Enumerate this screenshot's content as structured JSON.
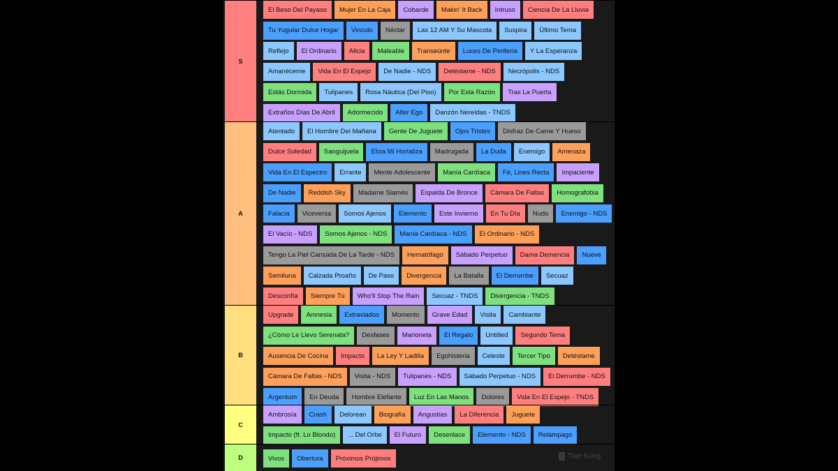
{
  "watermark": "Tier King",
  "tiers": [
    {
      "label": "S",
      "color": "#ff7f7f",
      "rows": [
        [
          [
            "El Beso Del Payaso",
            "#ff7f7f"
          ],
          [
            "Mujer En La Caja",
            "#ffa05a"
          ],
          [
            "Cobarde",
            "#c8a0ff"
          ],
          [
            "Makin' It Back",
            "#ffa05a"
          ],
          [
            "Intruso",
            "#c8a0ff"
          ],
          [
            "Ciencia De La Lluvia",
            "#ff7f7f"
          ]
        ],
        [
          [
            "Tu Yugular Dulce Hogar",
            "#4a9fff"
          ],
          [
            "Vinculo",
            "#4a9fff"
          ],
          [
            "Néctar",
            "#9a9a9a"
          ],
          [
            "Las 12 AM Y Su Mascota",
            "#8cc8ff"
          ],
          [
            "Suspira",
            "#8cc8ff"
          ],
          [
            "Último Tema",
            "#8cc8ff"
          ]
        ],
        [
          [
            "Reflejo",
            "#8cc8ff"
          ],
          [
            "El Ordinario",
            "#c8a0ff"
          ],
          [
            "Alicia",
            "#ff7f7f"
          ],
          [
            "Maleable",
            "#7ee07e"
          ],
          [
            "Transeúnte",
            "#ffa05a"
          ],
          [
            "Luces De Periferia",
            "#4a9fff"
          ],
          [
            "Y La Esperanza",
            "#8cc8ff"
          ]
        ],
        [
          [
            "Amanéceme",
            "#8cc8ff"
          ],
          [
            "Vida En El Espejo",
            "#ff7f7f"
          ],
          [
            "De Nadie - NDS",
            "#8cc8ff"
          ],
          [
            "Detéstame - NDS",
            "#ff7f7f"
          ],
          [
            "Necrópolis - NDS",
            "#8cc8ff"
          ]
        ],
        [
          [
            "Estás Dormida",
            "#7ee07e"
          ],
          [
            "Tulipanes",
            "#8cc8ff"
          ],
          [
            "Rosa Náutica (Del Piso)",
            "#8cc8ff"
          ],
          [
            "Por Esta Razón",
            "#7ee07e"
          ],
          [
            "Tras La Puerta",
            "#c8a0ff"
          ]
        ],
        [
          [
            "Extraños Días De Abril",
            "#c8a0ff"
          ],
          [
            "Adormecido",
            "#7ee07e"
          ],
          [
            "Alter Ego",
            "#4a9fff"
          ],
          [
            "Danzón Nereidas - TNDS",
            "#8cc8ff"
          ]
        ]
      ]
    },
    {
      "label": "A",
      "color": "#ffbf7f",
      "rows": [
        [
          [
            "Atentado",
            "#8cc8ff"
          ],
          [
            "El Hombre Del Mañana",
            "#8cc8ff"
          ],
          [
            "Gente De Juguete",
            "#7ee07e"
          ],
          [
            "Ojos Tristes",
            "#4a9fff"
          ],
          [
            "Disfraz De Carne Y Hueso",
            "#9a9a9a"
          ]
        ],
        [
          [
            "Dulce Soledad",
            "#ff7f7f"
          ],
          [
            "Sanguijuela",
            "#7ee07e"
          ],
          [
            "Eliza Mi Hortaliza",
            "#4a9fff"
          ],
          [
            "Madrugada",
            "#9a9a9a"
          ],
          [
            "La Duda",
            "#4a9fff"
          ],
          [
            "Enemigo",
            "#8cc8ff"
          ],
          [
            "Amenaza",
            "#ffa05a"
          ]
        ],
        [
          [
            "Vida En El Espectro",
            "#4a9fff"
          ],
          [
            "Errante",
            "#8cc8ff"
          ],
          [
            "Mente Adolescente",
            "#9a9a9a"
          ],
          [
            "Manía Cardíaca",
            "#7ee07e"
          ],
          [
            "Fé, Lines Recta",
            "#4a9fff"
          ],
          [
            "Impaciente",
            "#c8a0ff"
          ]
        ],
        [
          [
            "De Nadie",
            "#4a9fff"
          ],
          [
            "Reddish Sky",
            "#ffa05a"
          ],
          [
            "Madame Siamés",
            "#9a9a9a"
          ],
          [
            "Espalda De Bronce",
            "#c8a0ff"
          ],
          [
            "Cámara De Faltas",
            "#ff7f7f"
          ],
          [
            "Homografobia",
            "#7ee07e"
          ]
        ],
        [
          [
            "Falacia",
            "#4a9fff"
          ],
          [
            "Viceversa",
            "#9a9a9a"
          ],
          [
            "Somos Ajenos",
            "#8cc8ff"
          ],
          [
            "Elemento",
            "#4a9fff"
          ],
          [
            "Este Invierno",
            "#c8a0ff"
          ],
          [
            "En Tu Día",
            "#ff7f7f"
          ],
          [
            "Nudo",
            "#9a9a9a"
          ],
          [
            "Enemigo - NDS",
            "#4a9fff"
          ]
        ],
        [
          [
            "El Vacío - NDS",
            "#c8a0ff"
          ],
          [
            "Somos Ajenos - NDS",
            "#7ee07e"
          ],
          [
            "Manía Cardíaca - NDS",
            "#4a9fff"
          ],
          [
            "El Ordinario - NDS",
            "#ffa05a"
          ]
        ],
        [
          [
            "Tengo La Piel Cansada De La Tarde - NDS",
            "#9a9a9a"
          ],
          [
            "Hematófago",
            "#ffa05a"
          ],
          [
            "Sábado Perpetuo",
            "#c8a0ff"
          ],
          [
            "Dama Demencia",
            "#ff7f7f"
          ],
          [
            "Nueve",
            "#4a9fff"
          ]
        ],
        [
          [
            "Semiluna",
            "#ffa05a"
          ],
          [
            "Calzada Proaño",
            "#8cc8ff"
          ],
          [
            "De Paso",
            "#8cc8ff"
          ],
          [
            "Divergencia",
            "#ffa05a"
          ],
          [
            "La Batalla",
            "#9a9a9a"
          ],
          [
            "El Derrumbe",
            "#4a9fff"
          ],
          [
            "Secuaz",
            "#8cc8ff"
          ]
        ],
        [
          [
            "Desconfía",
            "#ff7f7f"
          ],
          [
            "Siempre Tú",
            "#ffa05a"
          ],
          [
            "Who'll Stop The Rain",
            "#c8a0ff"
          ],
          [
            "Secuaz - TNDS",
            "#8cc8ff"
          ],
          [
            "Divergencia - TNDS",
            "#7ee07e"
          ]
        ]
      ]
    },
    {
      "label": "B",
      "color": "#ffdf7f",
      "rows": [
        [
          [
            "Upgrade",
            "#ff7f7f"
          ],
          [
            "Amnesia",
            "#7ee07e"
          ],
          [
            "Extraviados",
            "#4a9fff"
          ],
          [
            "Momento",
            "#9a9a9a"
          ],
          [
            "Grave Edad",
            "#c8a0ff"
          ],
          [
            "Visita",
            "#8cc8ff"
          ],
          [
            "Cambiante",
            "#8cc8ff"
          ]
        ],
        [
          [
            "¿Cómo Le Llevo Serenata?",
            "#7ee07e"
          ],
          [
            "Desfases",
            "#9a9a9a"
          ],
          [
            "Marioneta",
            "#c8a0ff"
          ],
          [
            "El Regalo",
            "#4a9fff"
          ],
          [
            "Untitled",
            "#8cc8ff"
          ],
          [
            "Segundo Tema",
            "#ff7f7f"
          ]
        ],
        [
          [
            "Ausencia De Cocina",
            "#ffa05a"
          ],
          [
            "Impacto",
            "#ff7f7f"
          ],
          [
            "La Ley Y Ladilla",
            "#ffa05a"
          ],
          [
            "Egohisteria",
            "#9a9a9a"
          ],
          [
            "Celeste",
            "#8cc8ff"
          ],
          [
            "Tercer Tipo",
            "#7ee07e"
          ],
          [
            "Detéstame",
            "#ffa05a"
          ]
        ],
        [
          [
            "Cámara De Faltas - NDS",
            "#ffa05a"
          ],
          [
            "Visita - NDS",
            "#9a9a9a"
          ],
          [
            "Tulipanes - NDS",
            "#c8a0ff"
          ],
          [
            "Sábado Perpetuo - NDS",
            "#8cc8ff"
          ],
          [
            "El Derrumbe - NDS",
            "#ff7f7f"
          ]
        ],
        [
          [
            "Argentum",
            "#4a9fff"
          ],
          [
            "En Deuda",
            "#9a9a9a"
          ],
          [
            "Hombre Elefante",
            "#9a9a9a"
          ],
          [
            "Luz En Las Manos",
            "#7ee07e"
          ],
          [
            "Dolores",
            "#9a9a9a"
          ],
          [
            "Vida En El Espejo - TNDS",
            "#ff7f7f"
          ]
        ]
      ]
    },
    {
      "label": "C",
      "color": "#ffff7f",
      "rows": [
        [
          [
            "Ambrosía",
            "#c8a0ff"
          ],
          [
            "Crash",
            "#4a9fff"
          ],
          [
            "Delorean",
            "#8cc8ff"
          ],
          [
            "Biografía",
            "#ffa05a"
          ],
          [
            "Angustias",
            "#c8a0ff"
          ],
          [
            "La Diferencia",
            "#ff7f7f"
          ],
          [
            "Juguete",
            "#ffa05a"
          ]
        ],
        [
          [
            "Impacto (ft. Lo Blondo)",
            "#7ee07e"
          ],
          [
            "... Del Orbe",
            "#8cc8ff"
          ],
          [
            "El Futuro",
            "#c8a0ff"
          ],
          [
            "Desenlace",
            "#7ee07e"
          ],
          [
            "Elemento - NDS",
            "#4a9fff"
          ],
          [
            "Relámpago",
            "#4a9fff"
          ]
        ]
      ]
    },
    {
      "label": "D",
      "color": "#bfff7f",
      "rows": [
        [
          [
            "Vivos",
            "#7ee07e"
          ],
          [
            "Obertura",
            "#4a9fff"
          ],
          [
            "Próximos Prójimos",
            "#ff7f7f"
          ]
        ]
      ]
    }
  ]
}
